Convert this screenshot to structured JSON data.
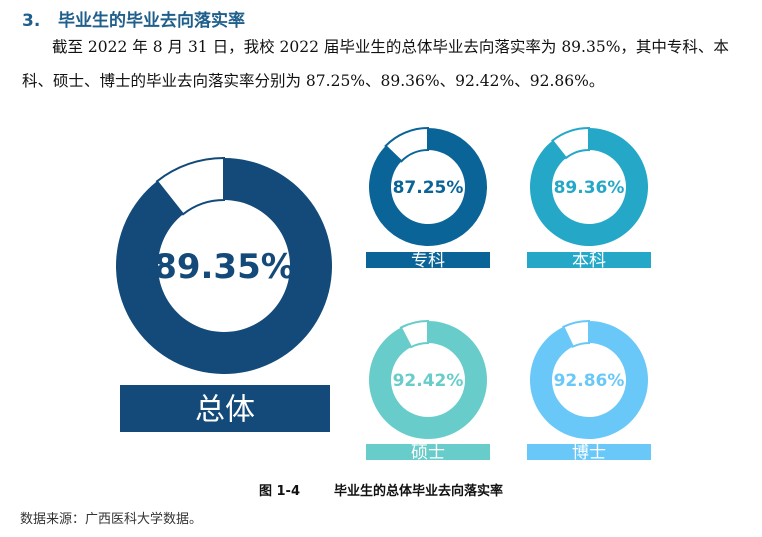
{
  "section": {
    "number": "3.",
    "title": "毕业生的毕业去向落实率"
  },
  "paragraph": {
    "text": "截至 2022 年 8 月 31 日，我校 2022 届毕业生的总体毕业去向落实率为 89.35%，其中专科、本科、硕士、博士的毕业去向落实率分别为 87.25%、89.36%、92.42%、92.86%。"
  },
  "figure": {
    "number": "图 1-4",
    "title": "毕业生的总体毕业去向落实率"
  },
  "source": "数据来源：广西医科大学数据。",
  "chart_data": {
    "type": "pie",
    "subtype": "donut",
    "title": "毕业生的总体毕业去向落实率",
    "unit": "%",
    "series": [
      {
        "name": "总体",
        "value": 89.35,
        "label": "89.35%",
        "color": "#134a79"
      },
      {
        "name": "专科",
        "value": 87.25,
        "label": "87.25%",
        "color": "#0a6498"
      },
      {
        "name": "本科",
        "value": 89.36,
        "label": "89.36%",
        "color": "#25a8c8"
      },
      {
        "name": "硕士",
        "value": 92.42,
        "label": "92.42%",
        "color": "#68cdca"
      },
      {
        "name": "博士",
        "value": 92.86,
        "label": "92.86%",
        "color": "#6ac8f9"
      }
    ],
    "remainder_color": "#ffffff"
  }
}
